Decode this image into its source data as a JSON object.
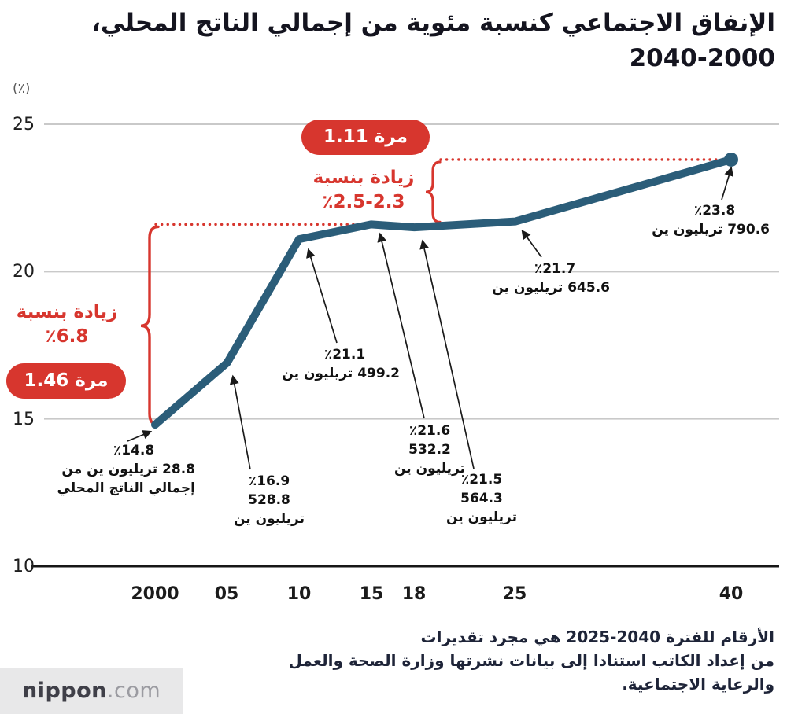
{
  "title": {
    "line1": "الإنفاق الاجتماعي كنسبة مئوية من إجمالي الناتج المحلي،",
    "line2": "2040-2000"
  },
  "y_axis": {
    "unit": "(٪)",
    "ticks": [
      "25",
      "20",
      "15",
      "10"
    ]
  },
  "x_axis": {
    "ticks": [
      "2000",
      "05",
      "10",
      "15",
      "18",
      "25",
      "40"
    ]
  },
  "chart_data": {
    "type": "line",
    "title": "الإنفاق الاجتماعي كنسبة مئوية من إجمالي الناتج المحلي، 2000-2040",
    "ylabel": "(٪)",
    "x": [
      2000,
      2005,
      2010,
      2015,
      2018,
      2025,
      2040
    ],
    "x_tick_labels": [
      "2000",
      "05",
      "10",
      "15",
      "18",
      "25",
      "40"
    ],
    "values": [
      14.8,
      16.9,
      21.1,
      21.6,
      21.5,
      21.7,
      23.8
    ],
    "amounts_trillion_yen": [
      28.8,
      528.8,
      499.2,
      532.2,
      564.3,
      645.6,
      790.6
    ],
    "ylim": [
      10,
      25.5
    ],
    "y_ticks": [
      25,
      20,
      15,
      10
    ],
    "grid": true,
    "legend": "none",
    "line_color": "#2b5d79",
    "accent_red": "#d7362e"
  },
  "annotations": {
    "left_badge": "مرة 1.46",
    "left_label_line1": "زيادة بنسبة",
    "left_label_line2": "٪6.8",
    "top_badge": "مرة 1.11",
    "top_label_line1": "زيادة بنسبة",
    "top_label_line2": "٪2.5-2.3"
  },
  "point_labels": {
    "p2000": {
      "pct": "٪14.8",
      "amount": "28.8 تريليون ين من",
      "amount2": "إجمالي الناتج المحلي"
    },
    "p2005": {
      "pct": "٪16.9",
      "amount": "528.8 تريليون ين"
    },
    "p2010": {
      "pct": "٪21.1",
      "amount": "499.2 تريليون ين"
    },
    "p2015": {
      "pct": "٪21.6",
      "amount": "532.2 تريليون ين"
    },
    "p2018": {
      "pct": "٪21.5",
      "amount": "564.3 تريليون ين"
    },
    "p2025": {
      "pct": "٪21.7",
      "amount": "645.6 تريليون ين"
    },
    "p2040": {
      "pct": "٪23.8",
      "amount": "790.6 تريليون ين"
    }
  },
  "footer": {
    "line1": "الأرقام للفترة 2040-2025 هي مجرد تقديرات",
    "line2": "من إعداد الكاتب استنادا إلى بيانات نشرتها وزارة الصحة والعمل",
    "line3": "والرعاية الاجتماعية."
  },
  "logo": {
    "name": "nippon",
    "tld": ".com"
  }
}
